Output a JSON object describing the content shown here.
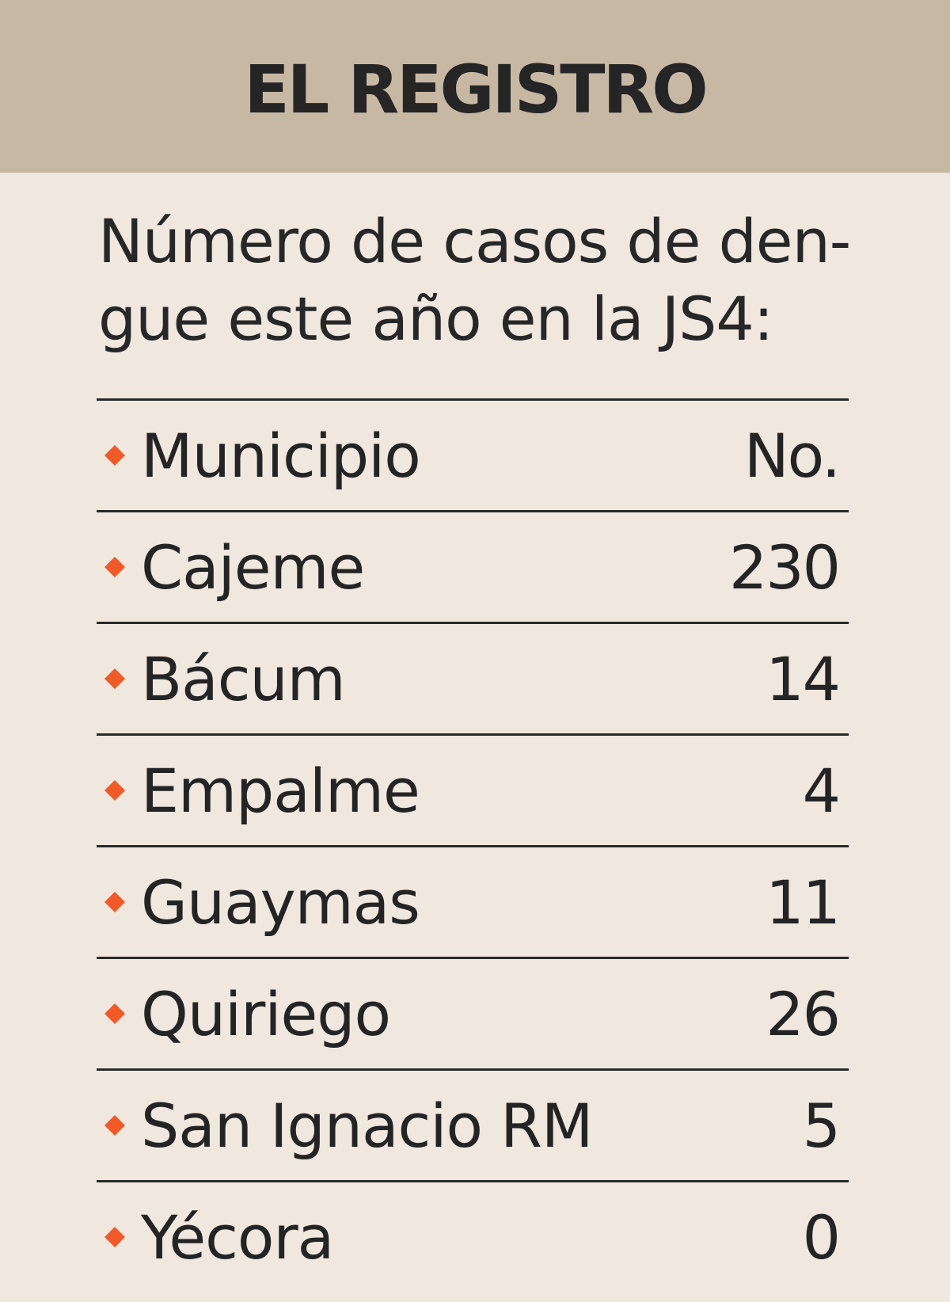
{
  "header": {
    "title": "EL REGISTRO"
  },
  "intro": {
    "text": "Número de casos de den-\ngue este año en la JS4:"
  },
  "colors": {
    "accent": "#f05a28",
    "header_bg": "#c7b8a3",
    "panel_bg": "#f0e7df"
  },
  "table": {
    "headers": {
      "municipio": "Municipio",
      "count": "No."
    },
    "rows": [
      {
        "municipio": "Cajeme",
        "count": "230"
      },
      {
        "municipio": "Bácum",
        "count": "14"
      },
      {
        "municipio": "Empalme",
        "count": "4"
      },
      {
        "municipio": "Guaymas",
        "count": "11"
      },
      {
        "municipio": "Quiriego",
        "count": "26"
      },
      {
        "municipio": "San Ignacio RM",
        "count": "5"
      },
      {
        "municipio": "Yécora",
        "count": "0"
      }
    ]
  }
}
